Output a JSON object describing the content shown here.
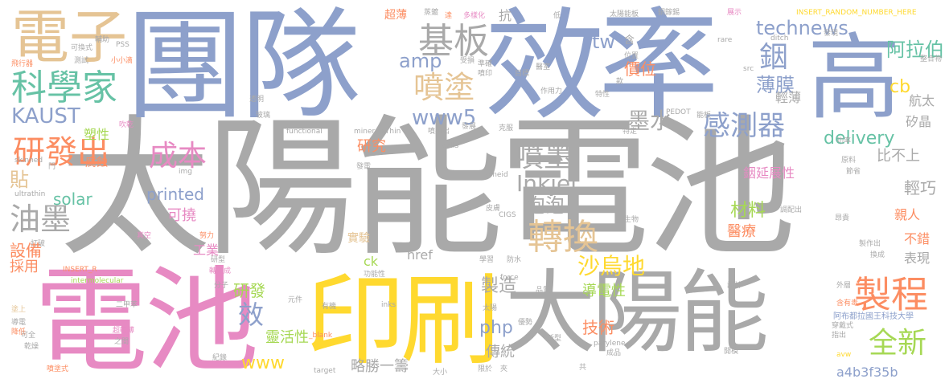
{
  "cloud": {
    "big": {
      "solar_cell": "太陽能電池",
      "team": "團隊",
      "efficiency": "效率",
      "high": "高",
      "battery": "電池",
      "print": "印刷",
      "solar": "太陽能",
      "electron": "電子"
    },
    "mid": {
      "scientist": "科學家",
      "substrate": "基板",
      "spray": "噴塗",
      "rd_out": "研發出",
      "cost": "成本",
      "ink_jet": "噴墨",
      "convert": "轉換",
      "process": "製程",
      "new": "全新",
      "oil_ink": "油墨",
      "sensor": "感測器",
      "ink": "墨水",
      "saudi": "沙烏地",
      "indium": "銦",
      "arabia": "阿拉伯",
      "film": "薄膜",
      "price": "價位",
      "techtext": "technews",
      "kaust": "KAUST",
      "www5": "www5",
      "amp": "amp",
      "tw": "tw",
      "cb": "cb",
      "delivery": "delivery",
      "inkjet": "Inkjet",
      "printed": "printed",
      "solar_en": "solar",
      "php": "php",
      "www": "www",
      "ck": "ck",
      "href": "href",
      "hash": "a4b3f35b",
      "bubble": "泡泡",
      "research": "研究",
      "flexible": "可撓",
      "equipment": "設備",
      "stick": "貼",
      "material": "材料",
      "medical": "醫療",
      "industry": "工業",
      "manufacture": "製造",
      "technology": "技術",
      "conductivity": "導電性",
      "traditional": "傳統",
      "flexibility": "靈活性",
      "slightly_better": "略勝一籌",
      "indium_ductility": "銦延展性",
      "light_cheap": "輕巧",
      "lightweight": "輕薄",
      "aerospace": "航太",
      "silicon": "矽晶",
      "not_comparable": "比不上",
      "relatives": "親人",
      "not_bad": "不錯",
      "performance": "表現",
      "adopt": "採用",
      "experiment": "實驗",
      "rd": "研發",
      "effect": "效",
      "plastic": "塑性",
      "corrode": "腐蝕",
      "ultrathin_zh": "超薄",
      "resist": "抗"
    },
    "small": [
      "INSERT_RANDOM_NUMBER_HERE",
      "太陽能板",
      "銅鎵錫",
      "展示",
      "低",
      "達",
      "多樣化",
      "蒸鍍",
      "含",
      "PSS",
      "可換式",
      "測試",
      "飛行器",
      "輔助",
      "小小滴",
      "準確",
      "噴印",
      "受損",
      "目標",
      "位置",
      "款",
      "rare",
      "ditch",
      "src",
      "發現",
      "整合物",
      "醫室",
      "吹乾",
      "透明",
      "玻璃",
      "functional",
      "mineralsThin",
      "cells",
      "噴射出",
      "發展",
      "克服",
      "作用力",
      "特性",
      "特定",
      "能板",
      "PEDOT",
      "原料",
      "節省",
      "功率",
      "skinned",
      "門",
      "img",
      "發電",
      "zoneid",
      "CIGS",
      "皮膚",
      "生物",
      "調配出",
      "昂貴",
      "ultrathin",
      "打破",
      "真空",
      "努力",
      "研型",
      "轉變成",
      "防水",
      "換成",
      "外層",
      "製作出",
      "學習",
      "INSERT_R",
      "intermolecular",
      "分子",
      "功能性",
      "force",
      "品質",
      "設計",
      "含有毒",
      "穿戴式",
      "阿布都拉國王科技大學",
      "塗上",
      "導電",
      "降低",
      "二甲苯",
      "元件",
      "有機",
      "inks",
      "太陽",
      "優勢",
      "新型",
      "parylene",
      "成品",
      "開模",
      "指出",
      "avw",
      "可全",
      "乾燥",
      "超輕薄",
      "之間",
      "紀錄",
      "_blank",
      "target",
      "大小",
      "限於",
      "共",
      "夾",
      "噴塗式"
    ]
  }
}
